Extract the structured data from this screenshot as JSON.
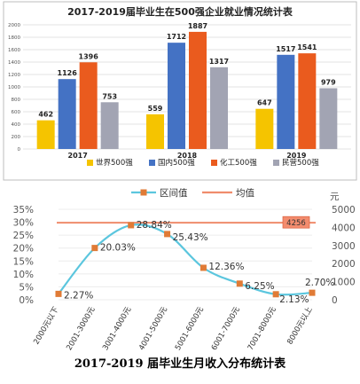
{
  "chart_data": [
    {
      "type": "bar",
      "title": "2017-2019届毕业生在500强企业就业情况统计表",
      "categories": [
        "2017",
        "2018",
        "2019"
      ],
      "series": [
        {
          "name": "世界500强",
          "color": "#f5c400",
          "values": [
            462,
            559,
            647
          ]
        },
        {
          "name": "国内500强",
          "color": "#4472c4",
          "values": [
            1126,
            1712,
            1517
          ]
        },
        {
          "name": "化工500强",
          "color": "#ea5b1e",
          "values": [
            1396,
            1887,
            1541
          ]
        },
        {
          "name": "民营500强",
          "color": "#a2a4b3",
          "values": [
            753,
            1317,
            979
          ]
        }
      ],
      "ylim": [
        0,
        2000
      ],
      "yticks": [
        0,
        200,
        400,
        600,
        800,
        1000,
        1200,
        1400,
        1600,
        1800,
        2000
      ],
      "grid": true,
      "legend": "bottom"
    },
    {
      "type": "line",
      "categories": [
        "2000元以下",
        "2001-3000元",
        "3001-4000元",
        "4001-5000元",
        "5001-6000元",
        "6001-7000元",
        "7001-8000元",
        "8000元以上"
      ],
      "series": [
        {
          "name": "区间值",
          "color": "#5bc6de",
          "marker_color": "#e07b36",
          "values": [
            2.27,
            20.03,
            28.84,
            25.43,
            12.36,
            6.25,
            2.13,
            2.7
          ],
          "labels": [
            "2.27%",
            "20.03%",
            "28.84%",
            "25.43%",
            "12.36%",
            "6.25%",
            "2.13%",
            "2.70%"
          ]
        },
        {
          "name": "均值",
          "color": "#f08c6c",
          "value": 4256,
          "label": "4256"
        }
      ],
      "ylim": [
        0,
        35
      ],
      "yticks": [
        "0%",
        "5%",
        "10%",
        "15%",
        "20%",
        "25%",
        "30%",
        "35%"
      ],
      "y2lim": [
        0,
        5000
      ],
      "y2ticks": [
        0,
        1000,
        2000,
        3000,
        4000,
        5000
      ],
      "y2unit": "元",
      "legend": "top"
    }
  ],
  "caption": "2017-2019 届毕业生月收入分布统计表"
}
